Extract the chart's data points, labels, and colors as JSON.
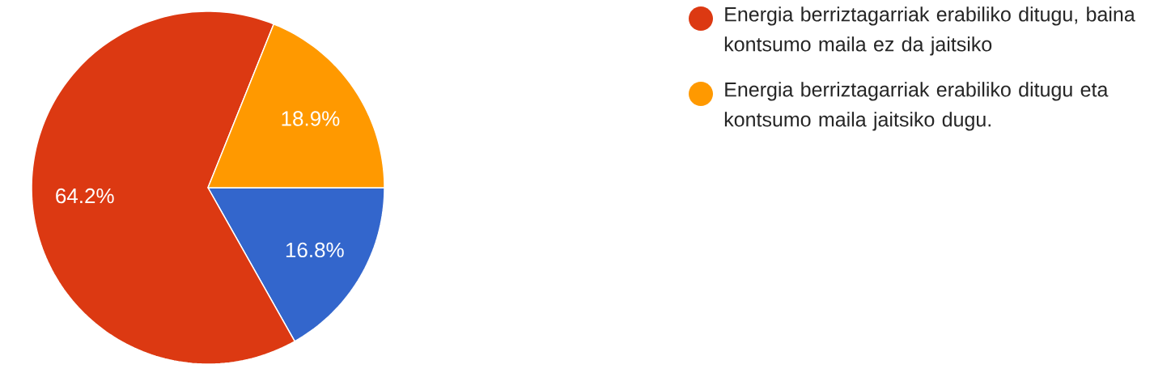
{
  "chart_data": {
    "type": "pie",
    "categories": [
      null,
      "Energia berriztagarriak erabiliko ditugu, baina kontsumo maila ez da jaitsiko",
      "Energia berriztagarriak erabiliko ditugu eta kontsumo maila jaitsiko dugu."
    ],
    "values": [
      16.8,
      64.2,
      18.9
    ],
    "colors": [
      "#3366cc",
      "#dc3912",
      "#ff9900"
    ],
    "value_labels": [
      "16.8%",
      "64.2%",
      "18.9%"
    ],
    "legend": "top right"
  }
}
